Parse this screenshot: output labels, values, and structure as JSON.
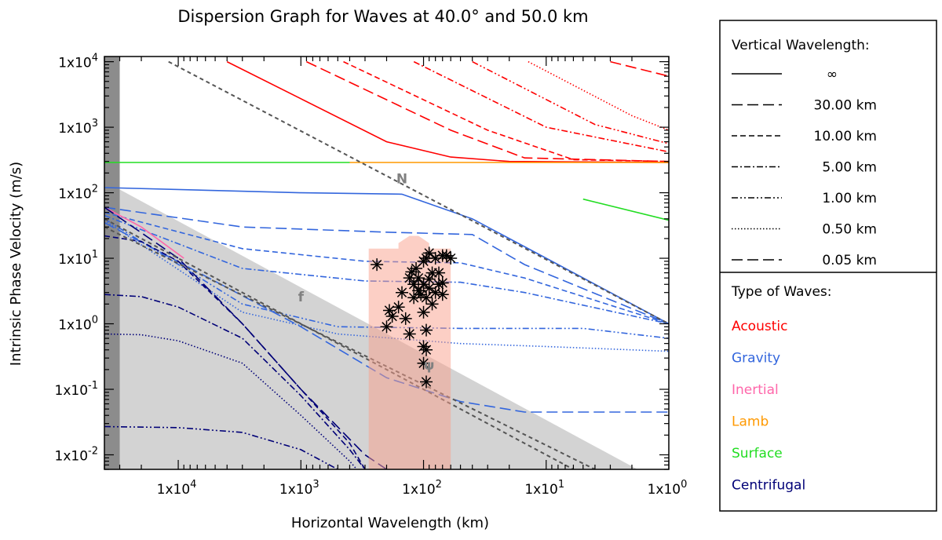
{
  "chart_data": {
    "type": "line",
    "title": "Dispersion Graph for Waves at 40.0° and 50.0 km",
    "xlabel": "Horizontal Wavelength (km)",
    "ylabel": "Intrinsic Phase Velocity (m/s)",
    "x_scale": "log",
    "y_scale": "log",
    "x_reversed": true,
    "xlim": [
      40000,
      1
    ],
    "ylim": [
      0.006,
      12000
    ],
    "x_ticks": [
      {
        "v": 10000,
        "label": "1x10^4"
      },
      {
        "v": 1000,
        "label": "1x10^3"
      },
      {
        "v": 100,
        "label": "1x10^2"
      },
      {
        "v": 10,
        "label": "1x10^1"
      },
      {
        "v": 1,
        "label": "1x10^0"
      }
    ],
    "y_ticks": [
      {
        "v": 0.01,
        "label": "1x10^-2"
      },
      {
        "v": 0.1,
        "label": "1x10^-1"
      },
      {
        "v": 1,
        "label": "1x10^0"
      },
      {
        "v": 10,
        "label": "1x10^1"
      },
      {
        "v": 100,
        "label": "1x10^2"
      },
      {
        "v": 1000,
        "label": "1x10^3"
      },
      {
        "v": 10000,
        "label": "1x10^4"
      }
    ],
    "legend_vertical": {
      "title": "Vertical Wavelength:",
      "entries": [
        {
          "label": "∞",
          "dash": "solid"
        },
        {
          "label": "30.00 km",
          "dash": "long-dash"
        },
        {
          "label": "10.00 km",
          "dash": "short-dash"
        },
        {
          "label": "5.00 km",
          "dash": "dash-dot"
        },
        {
          "label": "1.00 km",
          "dash": "dash-dot-dot"
        },
        {
          "label": "0.50 km",
          "dash": "dotted"
        },
        {
          "label": "0.05 km",
          "dash": "long-dash"
        }
      ]
    },
    "legend_types": {
      "title": "Type of Waves:",
      "entries": [
        {
          "label": "Acoustic",
          "color": "#ff0000"
        },
        {
          "label": "Gravity",
          "color": "#3366dd"
        },
        {
          "label": "Inertial",
          "color": "#ff66aa"
        },
        {
          "label": "Lamb",
          "color": "#ff9900"
        },
        {
          "label": "Surface",
          "color": "#22dd22"
        },
        {
          "label": "Centrifugal",
          "color": "#000077"
        }
      ]
    },
    "line_labels": [
      {
        "text": "N",
        "x": 150,
        "y": 140
      },
      {
        "text": "f",
        "x": 1000,
        "y": 2.2
      },
      {
        "text": "ψ",
        "x": 90,
        "y": 0.2
      }
    ],
    "dashed_lines": [
      {
        "name": "N",
        "points": [
          [
            12000,
            10000
          ],
          [
            1,
            1
          ]
        ]
      },
      {
        "name": "f",
        "points": [
          [
            40000,
            40
          ],
          [
            6,
            0.006
          ]
        ]
      },
      {
        "name": "psi",
        "points": [
          [
            40000,
            30
          ],
          [
            4,
            0.006
          ]
        ]
      }
    ],
    "shaded_region": {
      "name": "excluded-region",
      "points": [
        [
          40000,
          150
        ],
        [
          40000,
          0.006
        ],
        [
          1.8,
          0.006
        ]
      ]
    },
    "dark_band": {
      "x_from": 40000,
      "x_to": 30000
    },
    "observation_box": {
      "x_from": 280,
      "x_to": 60,
      "y_from": 0.006,
      "y_to": 14,
      "top_notch": [
        [
          160,
          14
        ],
        [
          160,
          17
        ],
        [
          130,
          22
        ],
        [
          110,
          22
        ],
        [
          90,
          17
        ],
        [
          90,
          14
        ]
      ]
    },
    "series": [
      {
        "name": "Acoustic",
        "color": "#ff0000",
        "dash": "solid",
        "points": [
          [
            4000,
            10000
          ],
          [
            200,
            600
          ],
          [
            60,
            350
          ],
          [
            20,
            300
          ],
          [
            1,
            290
          ]
        ]
      },
      {
        "name": "Acoustic",
        "color": "#ff0000",
        "dash": "long-dash",
        "points": [
          [
            900,
            10000
          ],
          [
            60,
            900
          ],
          [
            15,
            340
          ],
          [
            1,
            300
          ]
        ]
      },
      {
        "name": "Acoustic",
        "color": "#ff0000",
        "dash": "short-dash",
        "points": [
          [
            450,
            10000
          ],
          [
            30,
            900
          ],
          [
            6,
            320
          ],
          [
            1,
            300
          ]
        ]
      },
      {
        "name": "Acoustic",
        "color": "#ff0000",
        "dash": "dash-dot",
        "points": [
          [
            120,
            10000
          ],
          [
            10,
            1000
          ],
          [
            1,
            420
          ]
        ]
      },
      {
        "name": "Acoustic",
        "color": "#ff0000",
        "dash": "dash-dot-dot",
        "points": [
          [
            40,
            10000
          ],
          [
            4,
            1100
          ],
          [
            1,
            560
          ]
        ]
      },
      {
        "name": "Acoustic",
        "color": "#ff0000",
        "dash": "dotted",
        "points": [
          [
            14,
            10000
          ],
          [
            2,
            1500
          ],
          [
            1,
            900
          ]
        ]
      },
      {
        "name": "Acoustic",
        "color": "#ff0000",
        "dash": "long-dash",
        "points": [
          [
            3,
            10000
          ],
          [
            1,
            6000
          ]
        ]
      },
      {
        "name": "Surface",
        "color": "#22dd22",
        "dash": "solid",
        "points": [
          [
            40000,
            290
          ],
          [
            400,
            290
          ]
        ]
      },
      {
        "name": "Surface",
        "color": "#22dd22",
        "dash": "solid",
        "points": [
          [
            5,
            80
          ],
          [
            1,
            38
          ]
        ]
      },
      {
        "name": "Lamb",
        "color": "#ff9900",
        "dash": "solid",
        "points": [
          [
            400,
            290
          ],
          [
            1,
            290
          ]
        ]
      },
      {
        "name": "Gravity",
        "color": "#3366dd",
        "dash": "solid",
        "points": [
          [
            40000,
            120
          ],
          [
            1000,
            100
          ],
          [
            150,
            95
          ],
          [
            40,
            40
          ],
          [
            10,
            10
          ],
          [
            1,
            1
          ]
        ]
      },
      {
        "name": "Gravity",
        "color": "#3366dd",
        "dash": "long-dash",
        "points": [
          [
            40000,
            60
          ],
          [
            3000,
            30
          ],
          [
            200,
            25
          ],
          [
            40,
            23
          ],
          [
            15,
            8
          ],
          [
            1,
            1
          ]
        ]
      },
      {
        "name": "Gravity",
        "color": "#3366dd",
        "dash": "short-dash",
        "points": [
          [
            40000,
            50
          ],
          [
            3000,
            14
          ],
          [
            300,
            9
          ],
          [
            50,
            8.5
          ],
          [
            15,
            5
          ],
          [
            1,
            1
          ]
        ]
      },
      {
        "name": "Gravity",
        "color": "#3366dd",
        "dash": "dash-dot",
        "points": [
          [
            40000,
            45
          ],
          [
            3000,
            7
          ],
          [
            300,
            4.5
          ],
          [
            50,
            4.3
          ],
          [
            15,
            3
          ],
          [
            1,
            1
          ]
        ]
      },
      {
        "name": "Gravity",
        "color": "#3366dd",
        "dash": "dash-dot-dot",
        "points": [
          [
            40000,
            40
          ],
          [
            3000,
            2
          ],
          [
            500,
            0.9
          ],
          [
            50,
            0.85
          ],
          [
            5,
            0.85
          ],
          [
            1,
            0.6
          ]
        ]
      },
      {
        "name": "Gravity",
        "color": "#3366dd",
        "dash": "dotted",
        "points": [
          [
            40000,
            38
          ],
          [
            3000,
            1.5
          ],
          [
            500,
            0.7
          ],
          [
            50,
            0.5
          ],
          [
            10,
            0.45
          ],
          [
            1,
            0.38
          ]
        ]
      },
      {
        "name": "Gravity",
        "color": "#3366dd",
        "dash": "long-dash",
        "points": [
          [
            40000,
            35
          ],
          [
            1000,
            0.9
          ],
          [
            200,
            0.15
          ],
          [
            50,
            0.065
          ],
          [
            15,
            0.045
          ],
          [
            1,
            0.045
          ]
        ]
      },
      {
        "name": "Inertial",
        "color": "#ff66aa",
        "dash": "solid",
        "points": [
          [
            40000,
            60
          ],
          [
            20000,
            30
          ],
          [
            9000,
            10
          ]
        ]
      },
      {
        "name": "Centrifugal",
        "color": "#000077",
        "dash": "long-dash",
        "points": [
          [
            40000,
            60
          ],
          [
            10000,
            10
          ],
          [
            3000,
            1
          ],
          [
            1000,
            0.1
          ],
          [
            300,
            0.01
          ],
          [
            200,
            0.006
          ]
        ]
      },
      {
        "name": "Centrifugal",
        "color": "#000077",
        "dash": "short-dash",
        "points": [
          [
            40000,
            22
          ],
          [
            20000,
            18
          ],
          [
            10000,
            9
          ],
          [
            3000,
            1
          ],
          [
            1000,
            0.1
          ],
          [
            400,
            0.015
          ],
          [
            300,
            0.006
          ]
        ]
      },
      {
        "name": "Centrifugal",
        "color": "#000077",
        "dash": "dash-dot",
        "points": [
          [
            40000,
            2.8
          ],
          [
            20000,
            2.6
          ],
          [
            10000,
            1.8
          ],
          [
            3000,
            0.6
          ],
          [
            1000,
            0.08
          ],
          [
            400,
            0.012
          ],
          [
            300,
            0.006
          ]
        ]
      },
      {
        "name": "Centrifugal",
        "color": "#000077",
        "dash": "dotted",
        "points": [
          [
            40000,
            0.7
          ],
          [
            20000,
            0.68
          ],
          [
            10000,
            0.55
          ],
          [
            3000,
            0.25
          ],
          [
            1000,
            0.04
          ],
          [
            400,
            0.008
          ],
          [
            350,
            0.006
          ]
        ]
      },
      {
        "name": "Centrifugal",
        "color": "#000077",
        "dash": "dash-dot-dot",
        "points": [
          [
            40000,
            0.027
          ],
          [
            10000,
            0.026
          ],
          [
            3000,
            0.022
          ],
          [
            1000,
            0.012
          ],
          [
            500,
            0.006
          ]
        ]
      }
    ],
    "observations": [
      [
        240,
        8
      ],
      [
        90,
        12
      ],
      [
        80,
        10
      ],
      [
        70,
        11
      ],
      [
        65,
        11
      ],
      [
        95,
        10
      ],
      [
        100,
        9
      ],
      [
        115,
        7
      ],
      [
        130,
        5
      ],
      [
        110,
        5
      ],
      [
        85,
        6
      ],
      [
        75,
        6
      ],
      [
        120,
        4
      ],
      [
        100,
        4
      ],
      [
        90,
        3.5
      ],
      [
        80,
        3
      ],
      [
        95,
        2.5
      ],
      [
        105,
        2.8
      ],
      [
        85,
        2
      ],
      [
        120,
        2.5
      ],
      [
        70,
        2.8
      ],
      [
        150,
        3
      ],
      [
        160,
        1.8
      ],
      [
        190,
        1.6
      ],
      [
        180,
        1.3
      ],
      [
        100,
        1.5
      ],
      [
        140,
        1.2
      ],
      [
        200,
        0.9
      ],
      [
        130,
        0.7
      ],
      [
        95,
        0.8
      ],
      [
        100,
        0.45
      ],
      [
        95,
        0.4
      ],
      [
        75,
        4
      ],
      [
        60,
        10
      ],
      [
        100,
        0.25
      ],
      [
        95,
        0.13
      ],
      [
        110,
        3.2
      ],
      [
        90,
        4.8
      ],
      [
        125,
        6.2
      ],
      [
        70,
        4.2
      ]
    ]
  }
}
